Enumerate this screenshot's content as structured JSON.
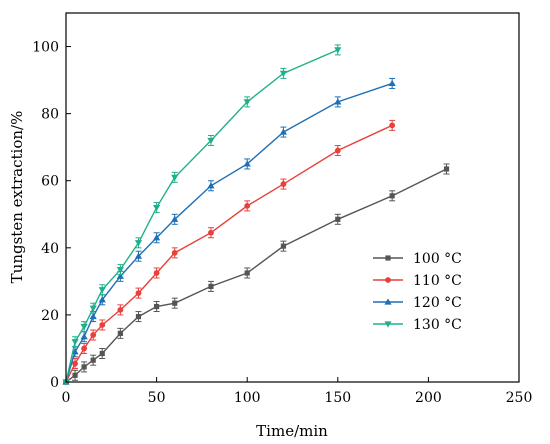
{
  "chart_data": {
    "type": "line",
    "title": "",
    "xlabel": "Time/min",
    "ylabel": "Tungsten extraction/%",
    "xlim": [
      0,
      250
    ],
    "ylim": [
      0,
      110
    ],
    "xticks": [
      "0",
      "50",
      "100",
      "150",
      "200",
      "250"
    ],
    "yticks": [
      "0",
      "20",
      "40",
      "60",
      "80",
      "100"
    ],
    "grid": false,
    "legend_position": "center-right",
    "series": [
      {
        "name": "100 °C",
        "color": "#555555",
        "marker": "square",
        "x": [
          0,
          5,
          10,
          15,
          20,
          30,
          40,
          50,
          60,
          80,
          100,
          120,
          150,
          180,
          210
        ],
        "y": [
          0,
          2,
          4.5,
          6.5,
          8.5,
          14.5,
          19.5,
          22.5,
          23.5,
          28.5,
          32.5,
          40.5,
          48.5,
          55.5,
          63.5
        ]
      },
      {
        "name": "110 °C",
        "color": "#e8403a",
        "marker": "circle",
        "x": [
          0,
          5,
          10,
          15,
          20,
          30,
          40,
          50,
          60,
          80,
          100,
          120,
          150,
          180
        ],
        "y": [
          0,
          5.5,
          10,
          14,
          17,
          21.5,
          26.5,
          32.5,
          38.5,
          44.5,
          52.5,
          59,
          69,
          76.5
        ]
      },
      {
        "name": "120 °C",
        "color": "#1f6fb5",
        "marker": "triangle-up",
        "x": [
          0,
          5,
          10,
          15,
          20,
          30,
          40,
          50,
          60,
          80,
          100,
          120,
          150,
          180
        ],
        "y": [
          0,
          9,
          13.5,
          19.5,
          24.5,
          31.5,
          37.5,
          43,
          48.5,
          58.5,
          65,
          74.5,
          83.5,
          89
        ]
      },
      {
        "name": "130 °C",
        "color": "#1fb08a",
        "marker": "triangle-down",
        "x": [
          0,
          5,
          10,
          15,
          20,
          30,
          40,
          50,
          60,
          80,
          100,
          120,
          150
        ],
        "y": [
          0,
          12,
          16.5,
          22,
          27.5,
          33.5,
          41.5,
          52,
          61,
          72,
          83.5,
          92,
          99
        ]
      }
    ]
  }
}
